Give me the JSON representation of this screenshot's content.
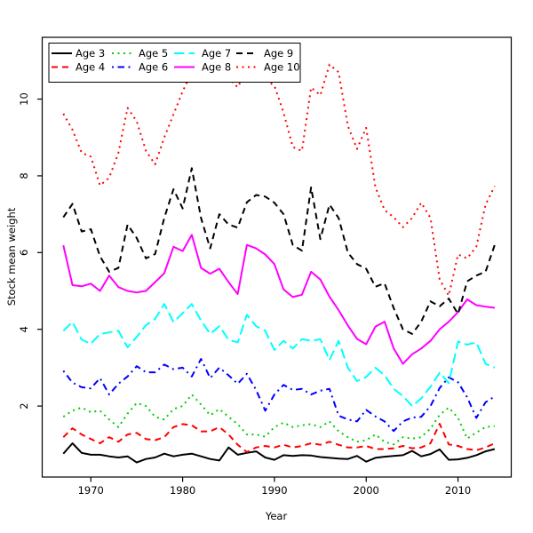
{
  "chart_data": {
    "type": "line",
    "title": "",
    "xlabel": "Year",
    "ylabel": "Stock mean weight",
    "x_ticks": [
      1970,
      1980,
      1990,
      2000,
      2010
    ],
    "y_ticks": [
      2,
      4,
      6,
      8,
      10
    ],
    "x_range": [
      1964.7,
      2015.8
    ],
    "y_range": [
      0.15,
      11.61
    ],
    "grid": false,
    "legend_position": "top-left",
    "legend_columns": 4,
    "x": [
      1967,
      1968,
      1969,
      1970,
      1971,
      1972,
      1973,
      1974,
      1975,
      1976,
      1977,
      1978,
      1979,
      1980,
      1981,
      1982,
      1983,
      1984,
      1985,
      1986,
      1987,
      1988,
      1989,
      1990,
      1991,
      1992,
      1993,
      1994,
      1995,
      1996,
      1997,
      1998,
      1999,
      2000,
      2001,
      2002,
      2003,
      2004,
      2005,
      2006,
      2007,
      2008,
      2009,
      2010,
      2011,
      2012,
      2013,
      2014
    ],
    "series": [
      {
        "name": "Age 3",
        "color": "#000000",
        "linetype": "solid",
        "values": [
          0.76,
          1.03,
          0.78,
          0.73,
          0.73,
          0.69,
          0.66,
          0.69,
          0.53,
          0.62,
          0.66,
          0.76,
          0.69,
          0.73,
          0.76,
          0.69,
          0.62,
          0.58,
          0.92,
          0.73,
          0.78,
          0.82,
          0.66,
          0.6,
          0.72,
          0.7,
          0.72,
          0.71,
          0.67,
          0.65,
          0.63,
          0.62,
          0.7,
          0.55,
          0.65,
          0.68,
          0.7,
          0.72,
          0.83,
          0.69,
          0.75,
          0.87,
          0.6,
          0.61,
          0.65,
          0.72,
          0.82,
          0.88
        ]
      },
      {
        "name": "Age 4",
        "color": "#ff0000",
        "linetype": "dashed",
        "values": [
          1.19,
          1.42,
          1.26,
          1.14,
          1.03,
          1.19,
          1.07,
          1.26,
          1.3,
          1.14,
          1.11,
          1.19,
          1.45,
          1.53,
          1.5,
          1.34,
          1.34,
          1.45,
          1.26,
          0.99,
          0.8,
          0.92,
          0.96,
          0.92,
          0.99,
          0.92,
          0.96,
          1.03,
          0.99,
          1.07,
          0.99,
          0.92,
          0.92,
          0.96,
          0.88,
          0.88,
          0.9,
          0.96,
          0.9,
          0.92,
          1.03,
          1.54,
          1.0,
          0.96,
          0.88,
          0.85,
          0.92,
          1.03
        ]
      },
      {
        "name": "Age 5",
        "color": "#00cd00",
        "linetype": "dotted",
        "values": [
          1.72,
          1.88,
          1.96,
          1.84,
          1.88,
          1.65,
          1.45,
          1.8,
          2.08,
          2.0,
          1.72,
          1.65,
          1.92,
          2.0,
          2.3,
          2.04,
          1.76,
          1.92,
          1.72,
          1.53,
          1.26,
          1.26,
          1.2,
          1.45,
          1.57,
          1.45,
          1.5,
          1.53,
          1.45,
          1.6,
          1.34,
          1.19,
          1.07,
          1.11,
          1.26,
          1.07,
          1.0,
          1.19,
          1.15,
          1.19,
          1.41,
          1.77,
          1.96,
          1.69,
          1.15,
          1.31,
          1.45,
          1.48
        ]
      },
      {
        "name": "Age 6",
        "color": "#0000ff",
        "linetype": "dotdash",
        "values": [
          2.92,
          2.61,
          2.49,
          2.46,
          2.73,
          2.3,
          2.58,
          2.77,
          3.04,
          2.88,
          2.88,
          3.08,
          2.96,
          3.0,
          2.77,
          3.23,
          2.73,
          3.0,
          2.8,
          2.58,
          2.84,
          2.42,
          1.88,
          2.3,
          2.55,
          2.42,
          2.45,
          2.3,
          2.4,
          2.45,
          1.75,
          1.65,
          1.6,
          1.9,
          1.73,
          1.6,
          1.35,
          1.6,
          1.7,
          1.72,
          2.0,
          2.47,
          2.75,
          2.62,
          2.23,
          1.69,
          2.1,
          2.25
        ]
      },
      {
        "name": "Age 7",
        "color": "#00ffff",
        "linetype": "longdash",
        "values": [
          3.96,
          4.19,
          3.73,
          3.62,
          3.88,
          3.92,
          3.96,
          3.53,
          3.8,
          4.11,
          4.27,
          4.66,
          4.19,
          4.42,
          4.66,
          4.23,
          3.88,
          4.08,
          3.73,
          3.66,
          4.38,
          4.08,
          3.96,
          3.46,
          3.7,
          3.5,
          3.74,
          3.7,
          3.74,
          3.2,
          3.7,
          3.0,
          2.65,
          2.76,
          3.0,
          2.8,
          2.45,
          2.26,
          2.0,
          2.2,
          2.5,
          2.87,
          2.6,
          3.68,
          3.6,
          3.66,
          3.1,
          3.0
        ]
      },
      {
        "name": "Age 8",
        "color": "#ff00ff",
        "linetype": "solid",
        "values": [
          6.19,
          5.15,
          5.12,
          5.19,
          5.0,
          5.4,
          5.1,
          5.0,
          4.96,
          5.0,
          5.23,
          5.46,
          6.15,
          6.04,
          6.46,
          5.6,
          5.45,
          5.58,
          5.23,
          4.92,
          6.2,
          6.11,
          5.95,
          5.7,
          5.04,
          4.84,
          4.9,
          5.5,
          5.3,
          4.85,
          4.5,
          4.1,
          3.75,
          3.61,
          4.07,
          4.2,
          3.5,
          3.1,
          3.35,
          3.5,
          3.7,
          4.0,
          4.2,
          4.45,
          4.78,
          4.63,
          4.59,
          4.56
        ]
      },
      {
        "name": "Age 9",
        "color": "#000000",
        "linetype": "dashed",
        "values": [
          6.92,
          7.27,
          6.55,
          6.61,
          5.9,
          5.5,
          5.6,
          6.73,
          6.38,
          5.85,
          5.96,
          6.9,
          7.65,
          7.15,
          8.2,
          6.9,
          6.11,
          7.0,
          6.73,
          6.65,
          7.31,
          7.5,
          7.46,
          7.3,
          7.0,
          6.2,
          6.05,
          7.7,
          6.35,
          7.25,
          6.9,
          6.0,
          5.7,
          5.58,
          5.11,
          5.2,
          4.55,
          4.0,
          3.88,
          4.2,
          4.73,
          4.6,
          4.8,
          4.4,
          5.25,
          5.4,
          5.5,
          6.2
        ]
      },
      {
        "name": "Age 10",
        "color": "#ff0000",
        "linetype": "dotted",
        "values": [
          9.62,
          9.2,
          8.6,
          8.5,
          7.75,
          7.95,
          8.6,
          9.77,
          9.42,
          8.65,
          8.3,
          9.0,
          9.6,
          10.2,
          10.7,
          10.54,
          10.73,
          10.81,
          10.54,
          10.31,
          10.77,
          10.77,
          10.5,
          10.35,
          9.65,
          8.75,
          8.65,
          10.3,
          10.1,
          10.9,
          10.7,
          9.3,
          8.7,
          9.25,
          7.7,
          7.11,
          6.92,
          6.66,
          6.9,
          7.3,
          6.9,
          5.3,
          4.88,
          5.95,
          5.85,
          6.15,
          7.25,
          7.73
        ]
      }
    ]
  }
}
